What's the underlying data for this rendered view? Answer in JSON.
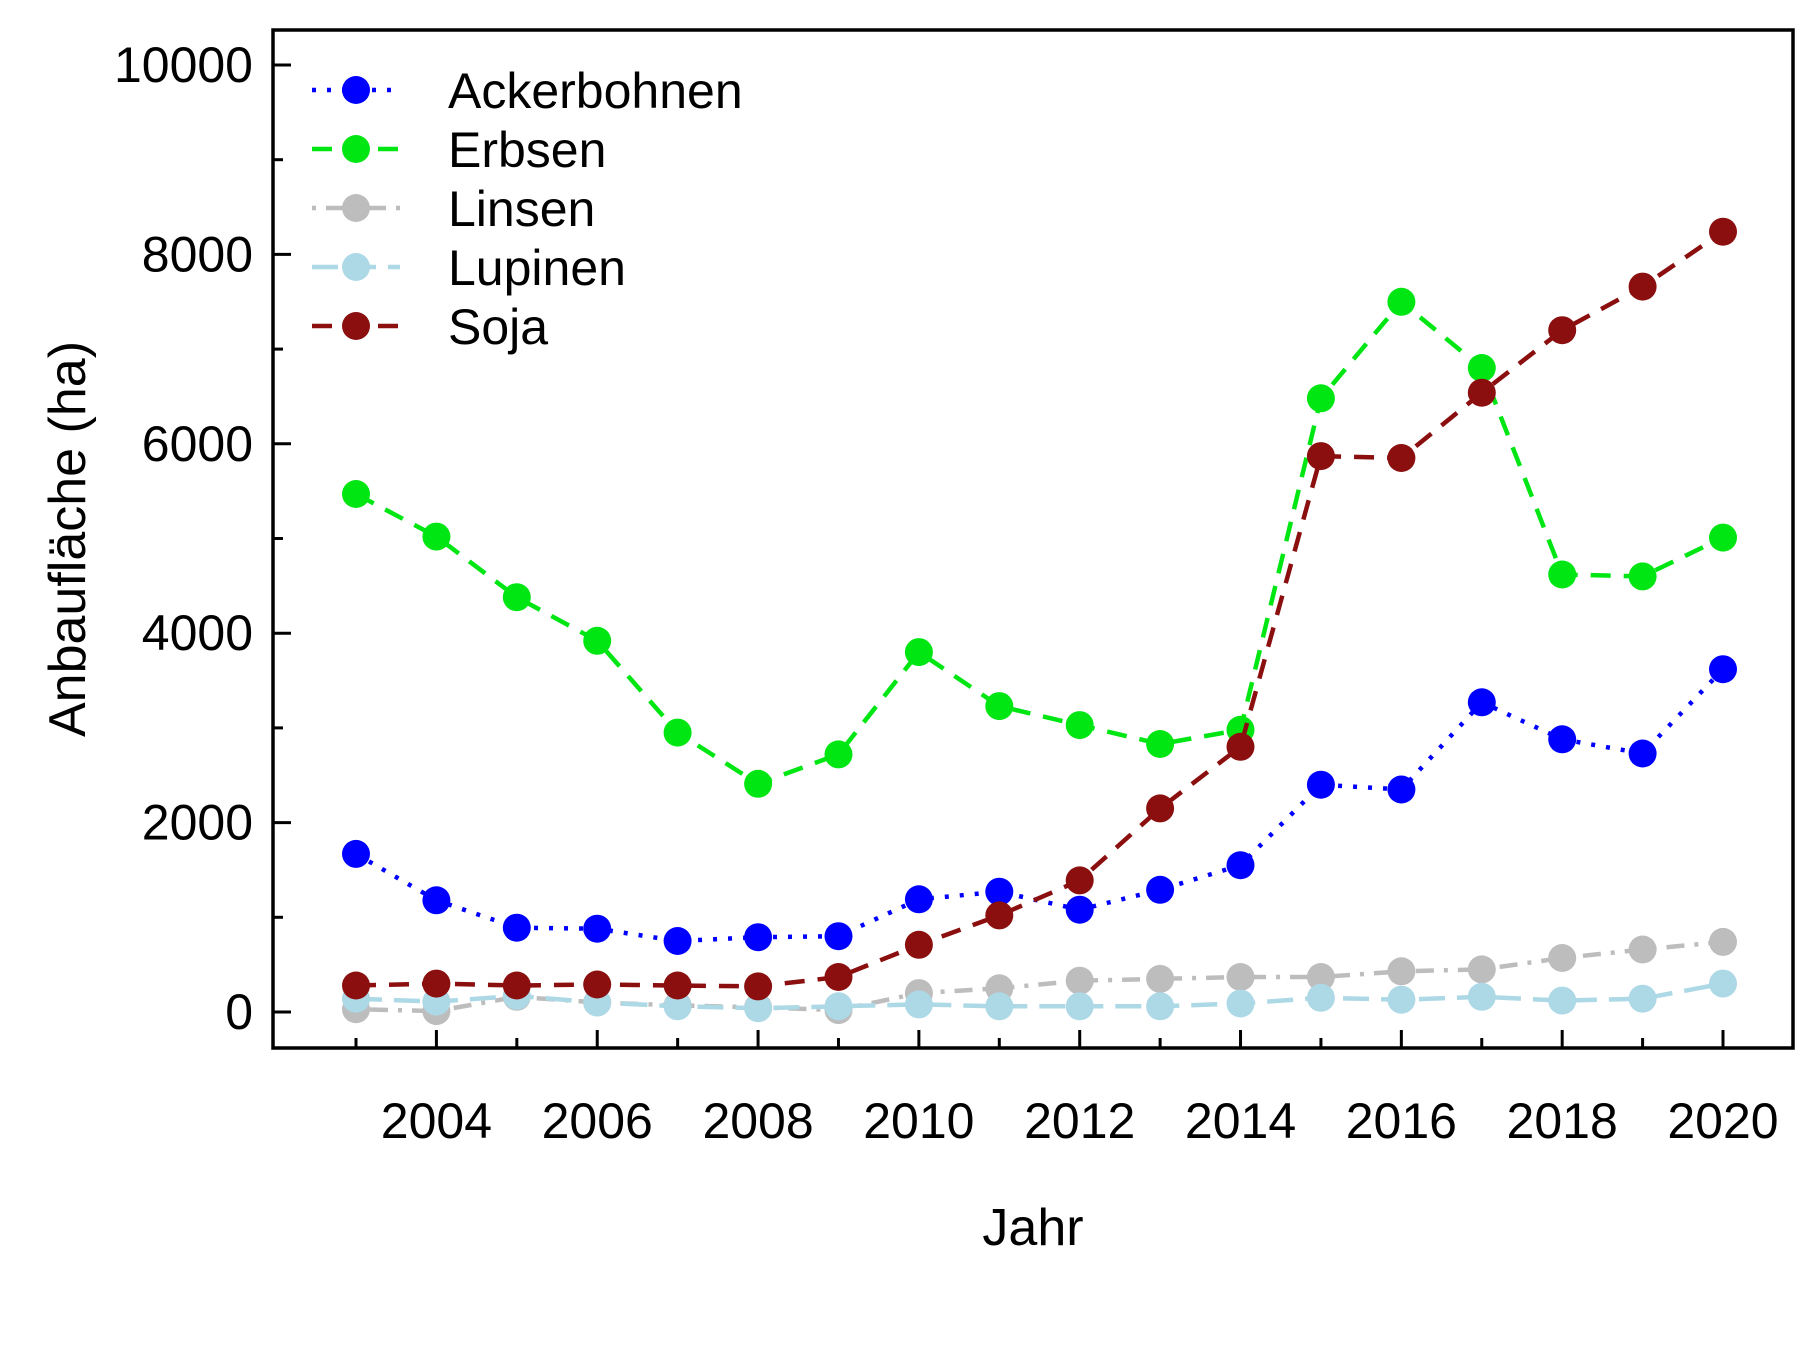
{
  "chart_data": {
    "type": "line",
    "title": "",
    "xlabel": "Jahr",
    "ylabel": "Anbaufläche (ha)",
    "background": "#ffffff",
    "axis_color": "#000000",
    "text_color": "#000000",
    "grid": false,
    "legend_position": "top-left",
    "xlim": [
      2003,
      2020
    ],
    "ylim": [
      0,
      10000
    ],
    "x": [
      2003,
      2004,
      2005,
      2006,
      2007,
      2008,
      2009,
      2010,
      2011,
      2012,
      2013,
      2014,
      2015,
      2016,
      2017,
      2018,
      2019,
      2020
    ],
    "x_labeled_ticks": [
      2004,
      2006,
      2008,
      2010,
      2012,
      2014,
      2016,
      2018,
      2020
    ],
    "x_minor_ticks": [
      2003,
      2005,
      2007,
      2009,
      2011,
      2013,
      2015,
      2017,
      2019
    ],
    "y_major_ticks": [
      0,
      2000,
      4000,
      6000,
      8000,
      10000
    ],
    "y_minor_ticks": [
      1000,
      3000,
      5000,
      7000,
      9000
    ],
    "series": [
      {
        "name": "Ackerbohnen",
        "color": "#0000ff",
        "linestyle": "dotted",
        "values": [
          1670,
          1180,
          890,
          880,
          750,
          790,
          800,
          1190,
          1270,
          1080,
          1290,
          1550,
          2400,
          2350,
          3270,
          2880,
          2730,
          3620
        ]
      },
      {
        "name": "Erbsen",
        "color": "#00e613",
        "linestyle": "dashed",
        "values": [
          5470,
          5020,
          4380,
          3920,
          2950,
          2410,
          2720,
          3800,
          3230,
          3030,
          2830,
          2980,
          6480,
          7500,
          6800,
          4620,
          4600,
          5010
        ]
      },
      {
        "name": "Linsen",
        "color": "#bdbdbd",
        "linestyle": "dashdot",
        "values": [
          30,
          10,
          160,
          100,
          70,
          50,
          20,
          200,
          250,
          330,
          350,
          370,
          370,
          430,
          450,
          570,
          660,
          740
        ]
      },
      {
        "name": "Lupinen",
        "color": "#add8e6",
        "linestyle": "longdash",
        "values": [
          140,
          110,
          170,
          100,
          60,
          40,
          60,
          80,
          60,
          60,
          60,
          90,
          150,
          130,
          160,
          120,
          140,
          300
        ]
      },
      {
        "name": "Soja",
        "color": "#8b0f0f",
        "linestyle": "dashed",
        "values": [
          280,
          300,
          280,
          290,
          280,
          270,
          370,
          710,
          1020,
          1390,
          2150,
          2800,
          5870,
          5850,
          6540,
          7200,
          7660,
          8240
        ]
      }
    ]
  }
}
